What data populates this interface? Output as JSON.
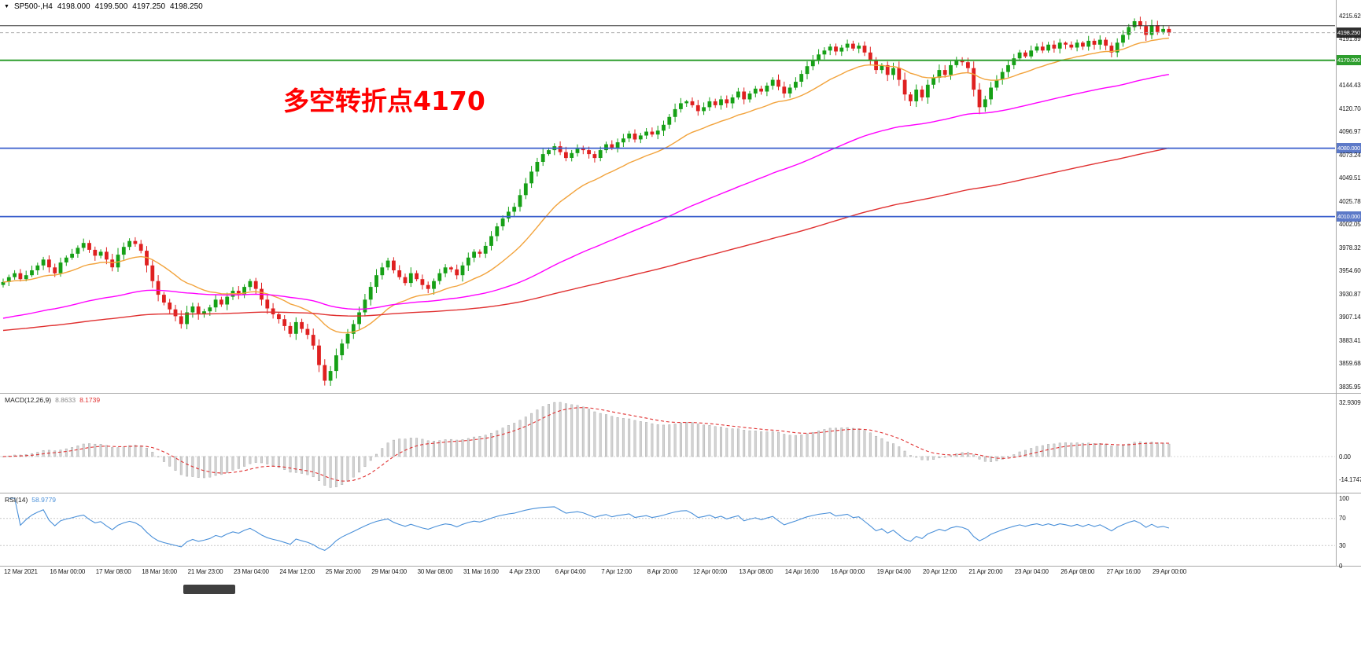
{
  "header": {
    "dropdown_icon": "▼",
    "symbol": "SP500-,H4",
    "open": "4198.000",
    "high": "4199.500",
    "low": "4197.250",
    "close": "4198.250"
  },
  "annotation": {
    "text": "多空转折点4170",
    "color": "#FF0000"
  },
  "badges": {
    "current": {
      "label": "4198.250",
      "price": 4198.25,
      "bg": "#2f2f2f"
    },
    "green_level": {
      "label": "4170.000",
      "price": 4170.0,
      "bg": "#2E9E2E"
    },
    "blue_level_1": {
      "label": "4080.000",
      "price": 4080.0,
      "bg": "#5C79C8"
    },
    "blue_level_2": {
      "label": "4010.000",
      "price": 4010.0,
      "bg": "#5C79C8"
    }
  },
  "levels": [
    {
      "name": "green-resistance-line",
      "price": 4170.0,
      "color": "#2E9E2E",
      "style": "solid",
      "width": 2
    },
    {
      "name": "blue-support-line-1",
      "price": 4080.0,
      "color": "#3A5FCD",
      "style": "solid",
      "width": 1.8
    },
    {
      "name": "blue-support-line-2",
      "price": 4010.0,
      "color": "#3A5FCD",
      "style": "solid",
      "width": 1.8
    },
    {
      "name": "black-resistance-line",
      "price": 4205.3,
      "color": "#333333",
      "style": "solid",
      "width": 1
    },
    {
      "name": "bid-price-line",
      "price": 4198.25,
      "color": "#aaaaaa",
      "style": "dashed",
      "width": 1
    }
  ],
  "macd_panel": {
    "label": "MACD(12,26,9)",
    "main_value": "8.8633",
    "signal_value": "8.1739",
    "fast_period": 12,
    "slow_period": 26,
    "signal_period": 9,
    "axis": [
      "32.9309",
      "0.00",
      "-14.1747"
    ],
    "scale_max": 32.9309,
    "scale_min": -14.1747,
    "histogram_color": "#d4d4d4",
    "histogram_border": "#a9a9a9",
    "signal_color": "#E03030"
  },
  "rsi_panel": {
    "label": "RSI(14)",
    "value": "58.9779",
    "period": 14,
    "axis": [
      "100",
      "70",
      "30",
      "0"
    ],
    "levels": [
      70,
      30
    ],
    "line_color": "#4a90d9"
  },
  "chart_data": {
    "type": "candlestick",
    "title": "SP500-,H4",
    "bull_color": "#16A016",
    "bear_color": "#DF2020",
    "current_ohlc": {
      "open": 4198.0,
      "high": 4199.5,
      "low": 4197.25,
      "close": 4198.25
    },
    "y_axis": {
      "top_tick": 4215.62,
      "bottom_tick": 3835.955,
      "tick_count": 17
    },
    "x_tick_labels": [
      "12 Mar 2021",
      "16 Mar 00:00",
      "17 Mar 08:00",
      "18 Mar 16:00",
      "21 Mar 23:00",
      "23 Mar 04:00",
      "24 Mar 12:00",
      "25 Mar 20:00",
      "29 Mar 04:00",
      "30 Mar 08:00",
      "31 Mar 16:00",
      "4 Apr 23:00",
      "6 Apr 04:00",
      "7 Apr 12:00",
      "8 Apr 20:00",
      "12 Apr 00:00",
      "13 Apr 08:00",
      "14 Apr 16:00",
      "16 Apr 00:00",
      "19 Apr 04:00",
      "20 Apr 12:00",
      "21 Apr 20:00",
      "23 Apr 04:00",
      "26 Apr 08:00",
      "27 Apr 16:00",
      "29 Apr 00:00"
    ],
    "first_open": 3940,
    "closes": [
      3943,
      3948,
      3952,
      3946,
      3950,
      3955,
      3960,
      3966,
      3958,
      3952,
      3963,
      3968,
      3972,
      3978,
      3983,
      3976,
      3970,
      3974,
      3966,
      3958,
      3971,
      3979,
      3985,
      3982,
      3975,
      3960,
      3944,
      3930,
      3922,
      3915,
      3908,
      3900,
      3912,
      3918,
      3910,
      3913,
      3917,
      3925,
      3920,
      3928,
      3934,
      3930,
      3938,
      3944,
      3936,
      3925,
      3916,
      3910,
      3905,
      3898,
      3890,
      3902,
      3895,
      3889,
      3878,
      3858,
      3842,
      3852,
      3868,
      3880,
      3890,
      3900,
      3912,
      3925,
      3938,
      3950,
      3958,
      3965,
      3955,
      3948,
      3942,
      3952,
      3946,
      3940,
      3936,
      3944,
      3952,
      3958,
      3956,
      3950,
      3960,
      3968,
      3974,
      3972,
      3980,
      3990,
      4000,
      4008,
      4015,
      4020,
      4032,
      4044,
      4056,
      4066,
      4074,
      4078,
      4082,
      4076,
      4070,
      4075,
      4080,
      4078,
      4074,
      4070,
      4078,
      4084,
      4080,
      4086,
      4090,
      4095,
      4089,
      4093,
      4097,
      4094,
      4098,
      4104,
      4112,
      4120,
      4126,
      4128,
      4124,
      4118,
      4122,
      4128,
      4124,
      4130,
      4126,
      4132,
      4138,
      4130,
      4136,
      4141,
      4138,
      4144,
      4150,
      4143,
      4136,
      4142,
      4148,
      4156,
      4164,
      4170,
      4176,
      4180,
      4184,
      4179,
      4183,
      4187,
      4182,
      4185,
      4178,
      4170,
      4160,
      4165,
      4155,
      4162,
      4150,
      4135,
      4128,
      4140,
      4132,
      4145,
      4152,
      4160,
      4155,
      4165,
      4170,
      4168,
      4162,
      4140,
      4122,
      4130,
      4142,
      4150,
      4158,
      4165,
      4172,
      4178,
      4174,
      4180,
      4184,
      4180,
      4186,
      4182,
      4188,
      4186,
      4183,
      4188,
      4184,
      4190,
      4186,
      4191,
      4185,
      4178,
      4188,
      4196,
      4204,
      4210,
      4205,
      4196,
      4206,
      4199,
      4202,
      4198.25
    ],
    "moving_averages": [
      {
        "name": "fast-ma",
        "color": "#F2A33C",
        "period": 20,
        "seed": null
      },
      {
        "name": "medium-ma",
        "color": "#FF00FF",
        "period": 80,
        "seed": 3905
      },
      {
        "name": "slow-ma",
        "color": "#E03030",
        "period": 200,
        "seed": 3893
      }
    ]
  }
}
